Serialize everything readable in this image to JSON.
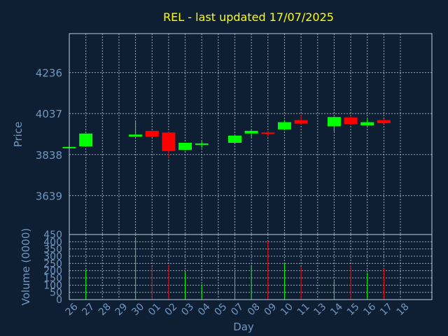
{
  "chart_data": [
    {
      "type": "candlestick",
      "title": "REL - last updated 17/07/2025",
      "ylabel": "Price",
      "yticks": [
        3639,
        3838,
        4037,
        4236
      ],
      "ylim": [
        3450,
        4425
      ],
      "grid": true,
      "colors": {
        "up": "#00ff00",
        "down": "#ff0000",
        "title": "#ffff00",
        "axis_text": "#6f97c2",
        "grid": "#bfcde0",
        "background": "#0f1f33"
      },
      "candles": [
        {
          "day": "26",
          "open": 3870,
          "high": 3875,
          "low": 3868,
          "close": 3875
        },
        {
          "day": "27",
          "open": 3878,
          "high": 3940,
          "low": 3875,
          "close": 3940
        },
        {
          "day": "30",
          "open": 3925,
          "high": 4000,
          "low": 3925,
          "close": 3935
        },
        {
          "day": "01",
          "open": 3953,
          "high": 3955,
          "low": 3922,
          "close": 3925
        },
        {
          "day": "02",
          "open": 3945,
          "high": 3948,
          "low": 3820,
          "close": 3855
        },
        {
          "day": "03",
          "open": 3860,
          "high": 3895,
          "low": 3857,
          "close": 3895
        },
        {
          "day": "04",
          "open": 3888,
          "high": 3903,
          "low": 3870,
          "close": 3892
        },
        {
          "day": "07",
          "open": 3895,
          "high": 3932,
          "low": 3893,
          "close": 3930
        },
        {
          "day": "08",
          "open": 3940,
          "high": 3960,
          "low": 3920,
          "close": 3953
        },
        {
          "day": "09",
          "open": 3945,
          "high": 3953,
          "low": 3925,
          "close": 3940
        },
        {
          "day": "10",
          "open": 3960,
          "high": 4005,
          "low": 3955,
          "close": 3995
        },
        {
          "day": "11",
          "open": 4005,
          "high": 4030,
          "low": 3985,
          "close": 3988
        },
        {
          "day": "14",
          "open": 3975,
          "high": 4022,
          "low": 3950,
          "close": 4020
        },
        {
          "day": "15",
          "open": 4018,
          "high": 4028,
          "low": 3980,
          "close": 3985
        },
        {
          "day": "16",
          "open": 3980,
          "high": 4010,
          "low": 3975,
          "close": 3995
        },
        {
          "day": "17",
          "open": 4005,
          "high": 4010,
          "low": 3987,
          "close": 3990
        }
      ]
    },
    {
      "type": "bar",
      "ylabel": "Volume (0000)",
      "xlabel": "Day",
      "yticks": [
        0,
        50,
        100,
        150,
        200,
        250,
        300,
        350,
        400,
        450
      ],
      "ylim": [
        0,
        450
      ],
      "categories": [
        "26",
        "27",
        "28",
        "29",
        "30",
        "01",
        "02",
        "03",
        "04",
        "05",
        "07",
        "08",
        "09",
        "10",
        "11",
        "13",
        "14",
        "15",
        "16",
        "17",
        "18"
      ],
      "bars": [
        {
          "day": "27",
          "value": 205,
          "color": "up"
        },
        {
          "day": "30",
          "value": 430,
          "color": "up"
        },
        {
          "day": "01",
          "value": 225,
          "color": "down"
        },
        {
          "day": "02",
          "value": 240,
          "color": "down"
        },
        {
          "day": "03",
          "value": 190,
          "color": "up"
        },
        {
          "day": "04",
          "value": 105,
          "color": "up"
        },
        {
          "day": "07",
          "value": 200,
          "color": "up"
        },
        {
          "day": "08",
          "value": 240,
          "color": "up"
        },
        {
          "day": "09",
          "value": 405,
          "color": "down"
        },
        {
          "day": "10",
          "value": 250,
          "color": "up"
        },
        {
          "day": "11",
          "value": 225,
          "color": "down"
        },
        {
          "day": "14",
          "value": 130,
          "color": "up"
        },
        {
          "day": "15",
          "value": 240,
          "color": "down"
        },
        {
          "day": "16",
          "value": 185,
          "color": "up"
        },
        {
          "day": "17",
          "value": 215,
          "color": "down"
        }
      ]
    }
  ]
}
